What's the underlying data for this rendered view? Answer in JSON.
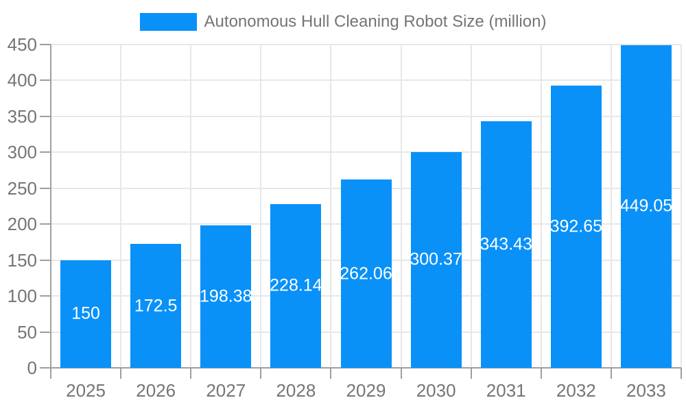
{
  "legend": {
    "label": "Autonomous Hull Cleaning Robot Size (million)"
  },
  "colors": {
    "bar": "#0991f8",
    "grid": "#e7e7e7",
    "axis": "#9e9e9e",
    "tick_label": "#757575",
    "legend_label": "#757575",
    "bar_value": "#ffffff",
    "background": "#ffffff"
  },
  "chart_data": {
    "type": "bar",
    "title": "Autonomous Hull Cleaning Robot Size (million)",
    "categories": [
      "2025",
      "2026",
      "2027",
      "2028",
      "2029",
      "2030",
      "2031",
      "2032",
      "2033"
    ],
    "values": [
      150,
      172.5,
      198.38,
      228.14,
      262.06,
      300.37,
      343.43,
      392.65,
      449.05
    ],
    "value_labels": [
      "150",
      "172.5",
      "198.38",
      "228.14",
      "262.06",
      "300.37",
      "343.43",
      "392.65",
      "449.05"
    ],
    "xlabel": "",
    "ylabel": "",
    "ylim": [
      0,
      450
    ],
    "ytick_step": 50,
    "ytick_labels": [
      "0",
      "50",
      "100",
      "150",
      "200",
      "250",
      "300",
      "350",
      "400",
      "450"
    ],
    "grid": true,
    "legend_position": "top",
    "value_label_position": "center-of-bar"
  }
}
